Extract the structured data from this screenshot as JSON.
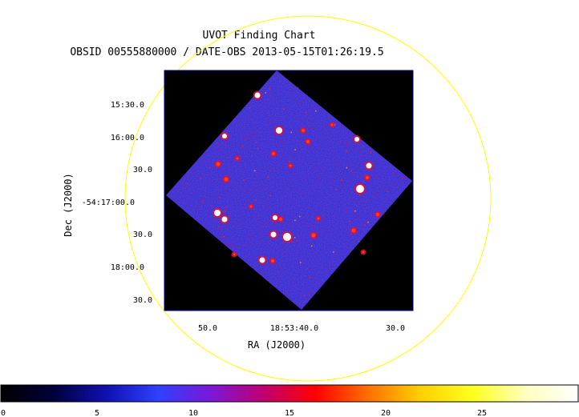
{
  "title": "UVOT Finding Chart",
  "subtitle": "OBSID 00555880000 / DATE-OBS 2013-05-15T01:26:19.5",
  "axes": {
    "x_label": "RA (J2000)",
    "y_label": "Dec (J2000)",
    "x_ticks": [
      "50.0",
      "18:53:40.0",
      "30.0"
    ],
    "y_ticks": [
      "15:30.0",
      "16:00.0",
      "30.0",
      "-54:17:00.0",
      "30.0",
      "18:00.0",
      "30.0"
    ]
  },
  "colorbar": {
    "tick_labels": [
      "0",
      "5",
      "10",
      "15",
      "20",
      "25"
    ],
    "tick_values": [
      0,
      5,
      10,
      15,
      20,
      25
    ],
    "range": [
      0,
      30
    ],
    "colormap": [
      "#000000",
      "#00003a",
      "#1010b0",
      "#3040ff",
      "#7a18d8",
      "#c00070",
      "#ff0000",
      "#ff7000",
      "#ffd000",
      "#ffff20",
      "#ffffc0",
      "#ffffff"
    ]
  },
  "colors": {
    "circle": "#ffff00",
    "image_background": "#000000",
    "field_color": "#2a34d8",
    "frame": "#0000aa"
  }
}
